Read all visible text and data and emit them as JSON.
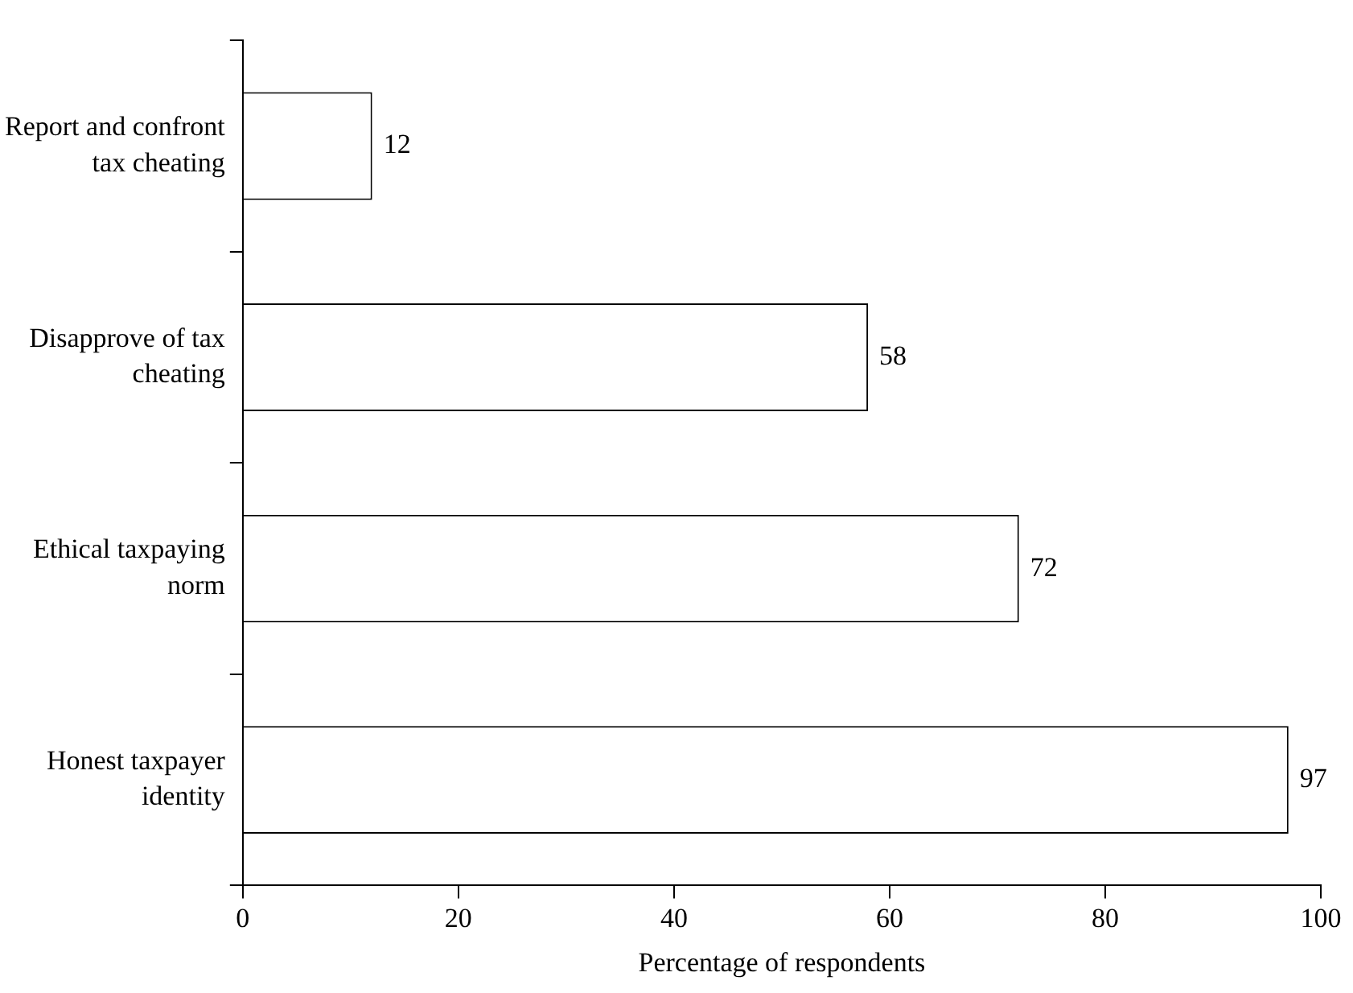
{
  "chart_data": {
    "type": "bar",
    "orientation": "horizontal",
    "xlabel": "Percentage of respondents",
    "categories": [
      "Report and confront tax cheating",
      "Disapprove of tax cheating",
      "Ethical taxpaying norm",
      "Honest taxpayer identity"
    ],
    "values": [
      12,
      58,
      72,
      97
    ],
    "color": "#ffffff",
    "xlim": [
      0,
      100
    ],
    "xticks": [
      0,
      20,
      40,
      60,
      80,
      100
    ],
    "grid": false,
    "legend": false,
    "data_labels": true
  }
}
